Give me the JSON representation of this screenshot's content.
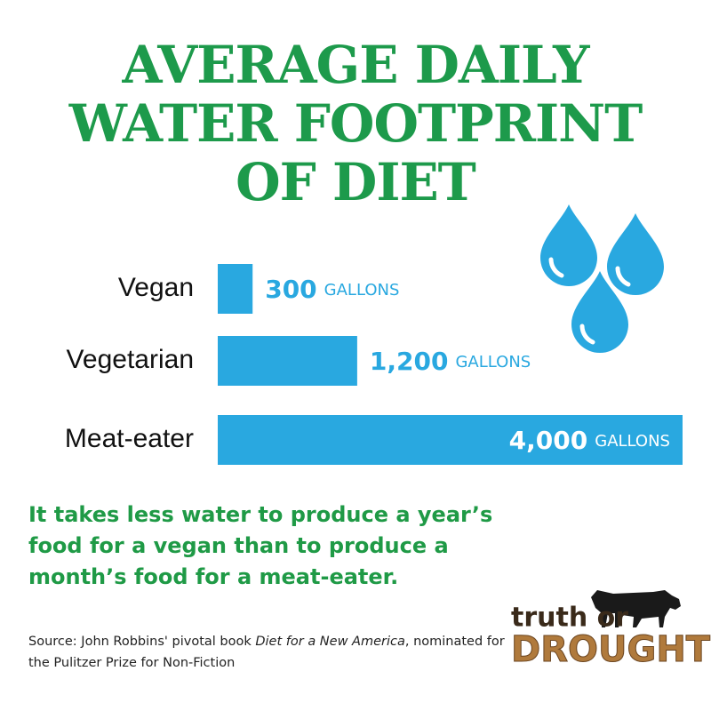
{
  "chart_data": {
    "type": "bar",
    "orientation": "horizontal",
    "title": "AVERAGE DAILY\nWATER FOOTPRINT\nOF DIET",
    "categories": [
      "Vegan",
      "Vegetarian",
      "Meat-eater"
    ],
    "values": [
      300,
      1200,
      4000
    ],
    "value_labels": [
      "300",
      "1,200",
      "4,000"
    ],
    "unit": "GALLONS",
    "color": "#29a8e0",
    "annotation": "It takes less water to produce a year’s food for a vegan than to produce a month’s food for a meat-eater.",
    "source": {
      "prefix": "Source: John Robbins' pivotal book ",
      "book": "Diet for a New America",
      "suffix": ", nominated for the Pulitzer Prize for Non-Fiction"
    },
    "logo": {
      "line1": "truth or",
      "line2": "DROUGHT"
    }
  }
}
